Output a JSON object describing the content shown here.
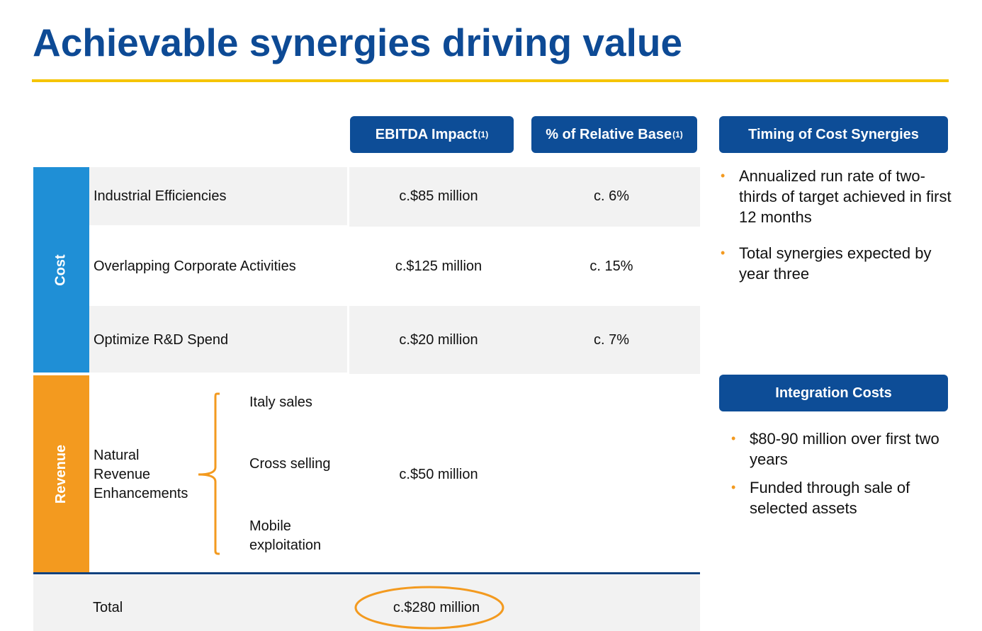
{
  "header": {
    "title": "Achievable synergies driving value"
  },
  "table": {
    "columns": [
      {
        "label": "EBITDA Impact",
        "note": "(1)"
      },
      {
        "label": "% of Relative Base",
        "note": "(1)"
      }
    ],
    "groups": [
      {
        "label": "Cost",
        "rows": [
          {
            "name": "Industrial Efficiencies",
            "ebitda": "c.$85 million",
            "base": "c. 6%"
          },
          {
            "name": "Overlapping Corporate Activities",
            "ebitda": "c.$125 million",
            "base": "c. 15%"
          },
          {
            "name": "Optimize R&D Spend",
            "ebitda": "c.$20 million",
            "base": "c. 7%"
          }
        ]
      },
      {
        "label": "Revenue",
        "rows": [
          {
            "name": "Natural Revenue Enhancements",
            "items": [
              "Italy sales",
              "Cross selling",
              "Mobile exploitation"
            ],
            "ebitda": "c.$50 million"
          }
        ]
      }
    ],
    "total": {
      "label": "Total",
      "ebitda": "c.$280 million"
    }
  },
  "timing": {
    "title": "Timing of Cost Synergies",
    "bullets": [
      "Annualized run rate of two-thirds of target achieved in first 12 months",
      "Total synergies expected by year three"
    ]
  },
  "integration": {
    "title": "Integration Costs",
    "bullets": [
      "$80-90 million over first two years",
      "Funded through sale of selected assets"
    ]
  }
}
